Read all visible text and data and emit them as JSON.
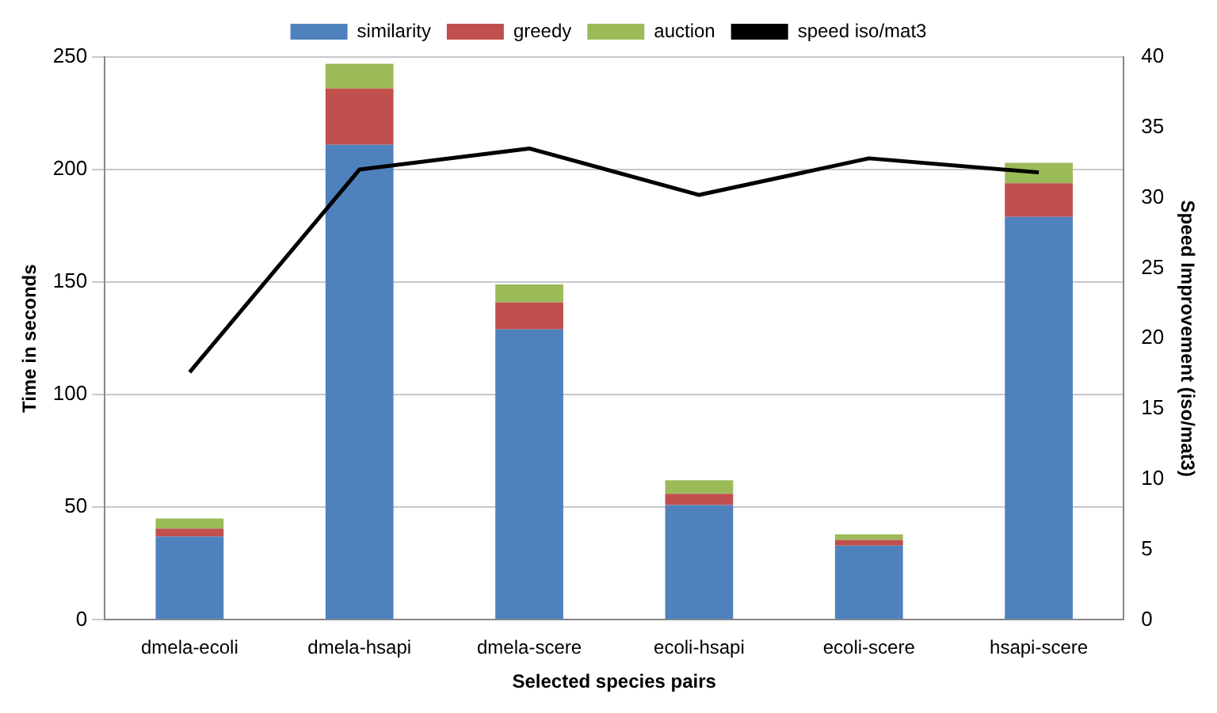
{
  "chart_data": {
    "type": "bar",
    "stacked": true,
    "xlabel": "Selected species pairs",
    "ylabel": "Time in seconds",
    "y2label": "Speed Improvement (iso/mat3)",
    "categories": [
      "dmela-ecoli",
      "dmela-hsapi",
      "dmela-scere",
      "ecoli-hsapi",
      "ecoli-scere",
      "hsapi-scere"
    ],
    "series": [
      {
        "name": "similarity",
        "color": "#4f81bd",
        "values": [
          37,
          211,
          129,
          51,
          33,
          179
        ]
      },
      {
        "name": "greedy",
        "color": "#c0504d",
        "values": [
          3.5,
          25,
          12,
          5,
          2.5,
          15
        ]
      },
      {
        "name": "auction",
        "color": "#9bbb59",
        "values": [
          4.5,
          11,
          8,
          6,
          2.5,
          9
        ]
      },
      {
        "name": "speed iso/mat3",
        "type": "line",
        "axis": "y2",
        "color": "#000000",
        "values": [
          17.6,
          32.0,
          33.5,
          30.2,
          32.8,
          31.8
        ]
      }
    ],
    "ylim": [
      0,
      250
    ],
    "yticks": [
      0,
      50,
      100,
      150,
      200,
      250
    ],
    "y2lim": [
      0,
      40
    ],
    "y2ticks": [
      0,
      5,
      10,
      15,
      20,
      25,
      30,
      35,
      40
    ],
    "grid": "y",
    "legend": "top",
    "marker": "none",
    "line_style": "solid"
  }
}
